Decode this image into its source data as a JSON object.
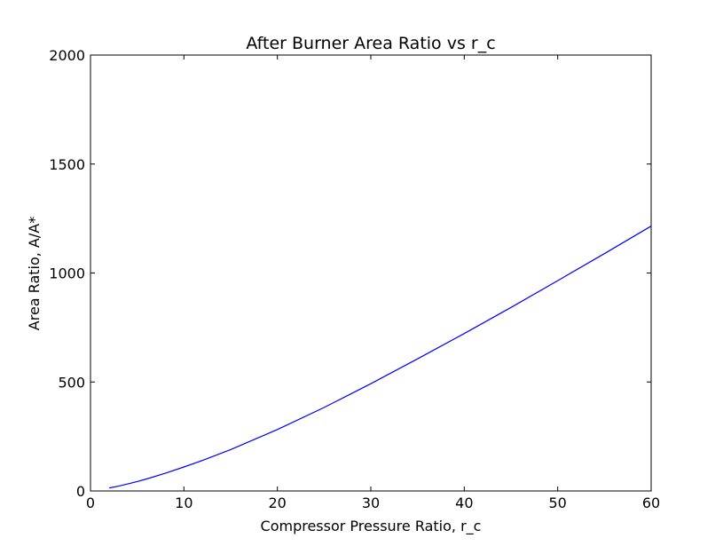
{
  "chart_data": {
    "type": "line",
    "title": "After Burner Area Ratio vs r_c",
    "xlabel": "Compressor Pressure Ratio, r_c",
    "ylabel": "Area Ratio, A/A*",
    "xlim": [
      0,
      60
    ],
    "ylim": [
      0,
      2000
    ],
    "xticks": [
      "0",
      "10",
      "20",
      "30",
      "40",
      "50",
      "60"
    ],
    "yticks": [
      "0",
      "500",
      "1000",
      "1500",
      "2000"
    ],
    "grid": false,
    "legend": "none",
    "line_color": "#0000ff",
    "series": [
      {
        "x": [
          2,
          3,
          4,
          5,
          6,
          8,
          10,
          12,
          15,
          20,
          25,
          30,
          35,
          40,
          45,
          50,
          55,
          60
        ],
        "values": [
          14,
          22,
          32,
          43,
          55,
          81,
          110,
          140,
          190,
          282,
          383,
          492,
          606,
          722,
          842,
          965,
          1089,
          1215
        ]
      }
    ]
  }
}
